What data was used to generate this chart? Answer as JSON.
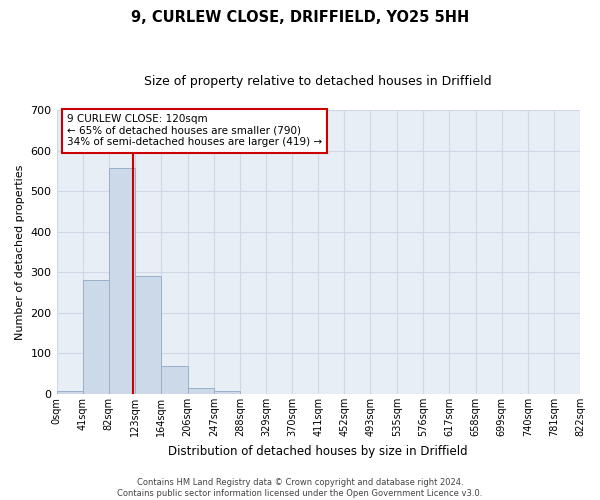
{
  "title": "9, CURLEW CLOSE, DRIFFIELD, YO25 5HH",
  "subtitle": "Size of property relative to detached houses in Driffield",
  "xlabel": "Distribution of detached houses by size in Driffield",
  "ylabel": "Number of detached properties",
  "footer_line1": "Contains HM Land Registry data © Crown copyright and database right 2024.",
  "footer_line2": "Contains public sector information licensed under the Open Government Licence v3.0.",
  "bin_edges": [
    0,
    41,
    82,
    123,
    164,
    206,
    247,
    288,
    329,
    370,
    411,
    452,
    493,
    535,
    576,
    617,
    658,
    699,
    740,
    781,
    822
  ],
  "bar_heights": [
    8,
    280,
    556,
    291,
    70,
    14,
    8,
    0,
    0,
    0,
    0,
    0,
    0,
    0,
    0,
    0,
    0,
    0,
    0,
    0
  ],
  "bar_color": "#ccd9e8",
  "bar_edge_color": "#9ab0c8",
  "grid_color": "#d0d8e8",
  "background_color": "#e8eef5",
  "red_line_x": 120,
  "annotation_text": "9 CURLEW CLOSE: 120sqm\n← 65% of detached houses are smaller (790)\n34% of semi-detached houses are larger (419) →",
  "annotation_box_color": "#ffffff",
  "annotation_box_edge": "#cc0000",
  "annotation_text_color": "#000000",
  "red_line_color": "#cc0000",
  "ylim": [
    0,
    700
  ],
  "yticks": [
    0,
    100,
    200,
    300,
    400,
    500,
    600,
    700
  ],
  "tick_labels": [
    "0sqm",
    "41sqm",
    "82sqm",
    "123sqm",
    "164sqm",
    "206sqm",
    "247sqm",
    "288sqm",
    "329sqm",
    "370sqm",
    "411sqm",
    "452sqm",
    "493sqm",
    "535sqm",
    "576sqm",
    "617sqm",
    "658sqm",
    "699sqm",
    "740sqm",
    "781sqm",
    "822sqm"
  ],
  "title_fontsize": 10.5,
  "subtitle_fontsize": 9,
  "ylabel_fontsize": 8,
  "xlabel_fontsize": 8.5,
  "tick_fontsize": 7,
  "footer_fontsize": 6,
  "annotation_fontsize": 7.5
}
